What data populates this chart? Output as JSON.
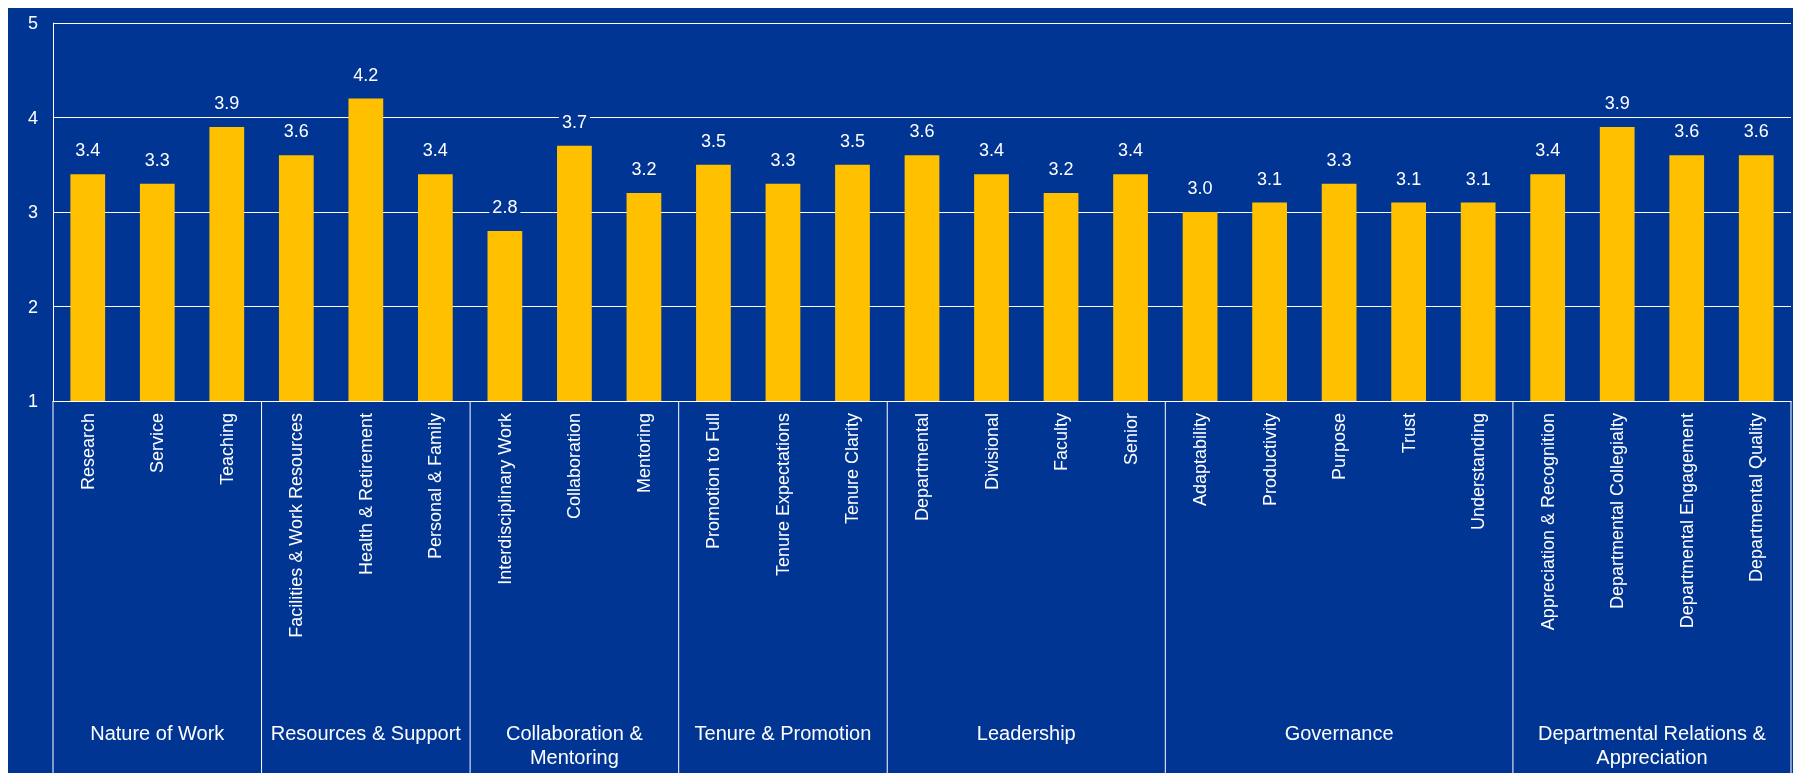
{
  "chart_data": {
    "type": "bar",
    "categories": [
      "Research",
      "Service",
      "Teaching",
      "Facilities & Work Resources",
      "Health & Retirement",
      "Personal & Family",
      "Interdisciplinary Work",
      "Collaboration",
      "Mentoring",
      "Promotion to Full",
      "Tenure Expectations",
      "Tenure Clarity",
      "Departmental",
      "Divisional",
      "Faculty",
      "Senior",
      "Adaptability",
      "Productivity",
      "Purpose",
      "Trust",
      "Understanding",
      "Appreciation & Recognition",
      "Departmental Collegialty",
      "Departmental Engagement",
      "Departmental Quality"
    ],
    "values": [
      3.4,
      3.3,
      3.9,
      3.6,
      4.2,
      3.4,
      2.8,
      3.7,
      3.2,
      3.5,
      3.3,
      3.5,
      3.6,
      3.4,
      3.2,
      3.4,
      3.0,
      3.1,
      3.3,
      3.1,
      3.1,
      3.4,
      3.9,
      3.6,
      3.6
    ],
    "value_labels": [
      "3.4",
      "3.3",
      "3.9",
      "3.6",
      "4.2",
      "3.4",
      "2.8",
      "3.7",
      "3.2",
      "3.5",
      "3.3",
      "3.5",
      "3.6",
      "3.4",
      "3.2",
      "3.4",
      "3.0",
      "3.1",
      "3.3",
      "3.1",
      "3.1",
      "3.4",
      "3.9",
      "3.6",
      "3.6"
    ],
    "color": "#ffc000",
    "ylim": [
      1,
      5
    ],
    "yticks": [
      1,
      2,
      3,
      4,
      5
    ],
    "grid": "y",
    "annotations": [
      "Nature of Work",
      "Resources & Support",
      "Collaboration & Mentoring",
      "Tenure & Promotion",
      "Leadership",
      "Governance",
      "Departmental Relations & Appreciation"
    ]
  }
}
